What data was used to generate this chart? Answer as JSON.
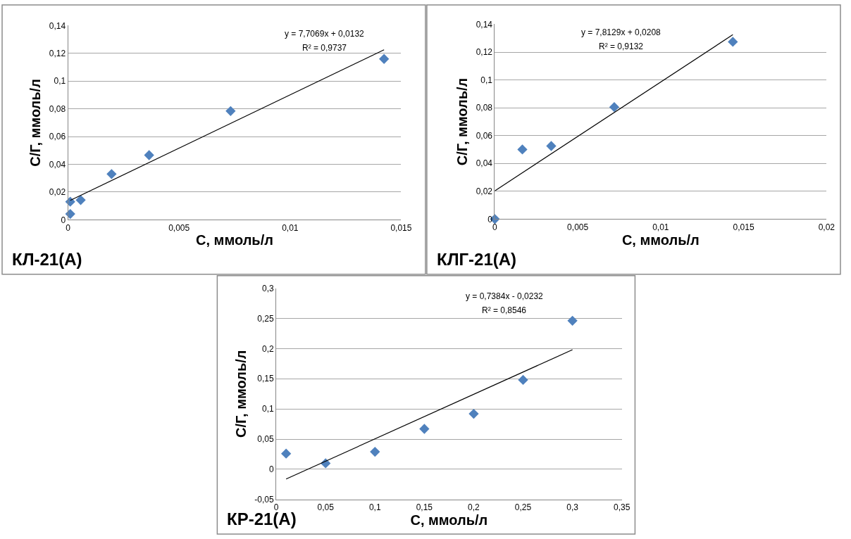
{
  "chart_data": [
    {
      "type": "scatter",
      "title": "КЛ-21(А)",
      "xlabel": "С, ммоль/л",
      "ylabel": "С/Г, ммоль/л",
      "annotations": [
        "y = 7,7069x + 0,0132",
        "R² = 0,9737"
      ],
      "series": [
        {
          "color": "#4f81bd",
          "marker": "diamond",
          "x": [
            0.0001,
            0.0001,
            0.00057,
            0.00196,
            0.00365,
            0.00732,
            0.01423
          ],
          "values": [
            0.013,
            0.0042,
            0.0142,
            0.033,
            0.0466,
            0.0784,
            0.116
          ]
        },
        {
          "type": "line",
          "color": "#000000",
          "marker": "none",
          "x": [
            0.0001,
            0.01423
          ],
          "values": [
            0.014,
            0.1226
          ]
        }
      ],
      "xlim": [
        0,
        0.015
      ],
      "xticks": [
        0,
        {
          "value": 0.005,
          "label": "0,005"
        },
        {
          "value": 0.01,
          "label": "0,01"
        },
        {
          "value": 0.015,
          "label": "0,015"
        }
      ],
      "ylim": [
        0,
        0.14
      ],
      "yticks": [
        0,
        {
          "value": 0.02,
          "label": "0,02"
        },
        {
          "value": 0.04,
          "label": "0,04"
        },
        {
          "value": 0.06,
          "label": "0,06"
        },
        {
          "value": 0.08,
          "label": "0,08"
        },
        {
          "value": 0.1,
          "label": "0,1"
        },
        {
          "value": 0.12,
          "label": "0,12"
        },
        {
          "value": 0.14,
          "label": "0,14"
        }
      ],
      "grid": "y"
    },
    {
      "type": "scatter",
      "title": "КЛГ-21(А)",
      "xlabel": "С, ммоль/л",
      "ylabel": "С/Г, ммоль/л",
      "annotations": [
        "y = 7,8129x + 0,0208",
        "R² = 0,9132"
      ],
      "series": [
        {
          "color": "#4f81bd",
          "marker": "diamond",
          "x": [
            0,
            0.00166,
            0.0034,
            0.0072,
            0.01435
          ],
          "values": [
            0,
            0.05,
            0.0525,
            0.0805,
            0.1274
          ]
        },
        {
          "type": "line",
          "color": "#000000",
          "marker": "none",
          "x": [
            0,
            0.01435
          ],
          "values": [
            0.0203,
            0.1325
          ]
        }
      ],
      "xlim": [
        0,
        0.02
      ],
      "xticks": [
        0,
        {
          "value": 0.005,
          "label": "0,005"
        },
        {
          "value": 0.01,
          "label": "0,01"
        },
        {
          "value": 0.015,
          "label": "0,015"
        },
        {
          "value": 0.02,
          "label": "0,02"
        }
      ],
      "ylim": [
        0,
        0.14
      ],
      "yticks": [
        0,
        {
          "value": 0.02,
          "label": "0,02"
        },
        {
          "value": 0.04,
          "label": "0,04"
        },
        {
          "value": 0.06,
          "label": "0,06"
        },
        {
          "value": 0.08,
          "label": "0,08"
        },
        {
          "value": 0.1,
          "label": "0,1"
        },
        {
          "value": 0.12,
          "label": "0,12"
        },
        {
          "value": 0.14,
          "label": "0,14"
        }
      ],
      "grid": "y"
    },
    {
      "type": "scatter",
      "title": "КР-21(А)",
      "xlabel": "С, ммоль/л",
      "ylabel": "С/Г, ммоль/л",
      "annotations": [
        "y = 0,7384x - 0,0232",
        "R² = 0,8546"
      ],
      "series": [
        {
          "color": "#4f81bd",
          "marker": "diamond",
          "x": [
            0.01,
            0.05,
            0.1,
            0.15,
            0.2,
            0.25,
            0.3
          ],
          "values": [
            0.026,
            0.01,
            0.029,
            0.067,
            0.092,
            0.148,
            0.246
          ]
        },
        {
          "type": "line",
          "color": "#000000",
          "marker": "none",
          "x": [
            0.01,
            0.3
          ],
          "values": [
            -0.016,
            0.198
          ]
        }
      ],
      "xlim": [
        0,
        0.35
      ],
      "xticks": [
        0,
        {
          "value": 0.05,
          "label": "0,05"
        },
        {
          "value": 0.1,
          "label": "0,1"
        },
        {
          "value": 0.15,
          "label": "0,15"
        },
        {
          "value": 0.2,
          "label": "0,2"
        },
        {
          "value": 0.25,
          "label": "0,25"
        },
        {
          "value": 0.3,
          "label": "0,3"
        },
        {
          "value": 0.35,
          "label": "0,35"
        }
      ],
      "ylim": [
        -0.05,
        0.3
      ],
      "yticks": [
        {
          "value": -0.05,
          "label": "-0,05"
        },
        0,
        {
          "value": 0.05,
          "label": "0,05"
        },
        {
          "value": 0.1,
          "label": "0,1"
        },
        {
          "value": 0.15,
          "label": "0,15"
        },
        {
          "value": 0.2,
          "label": "0,2"
        },
        {
          "value": 0.25,
          "label": "0,25"
        },
        {
          "value": 0.3,
          "label": "0,3"
        }
      ],
      "grid": "y"
    }
  ]
}
